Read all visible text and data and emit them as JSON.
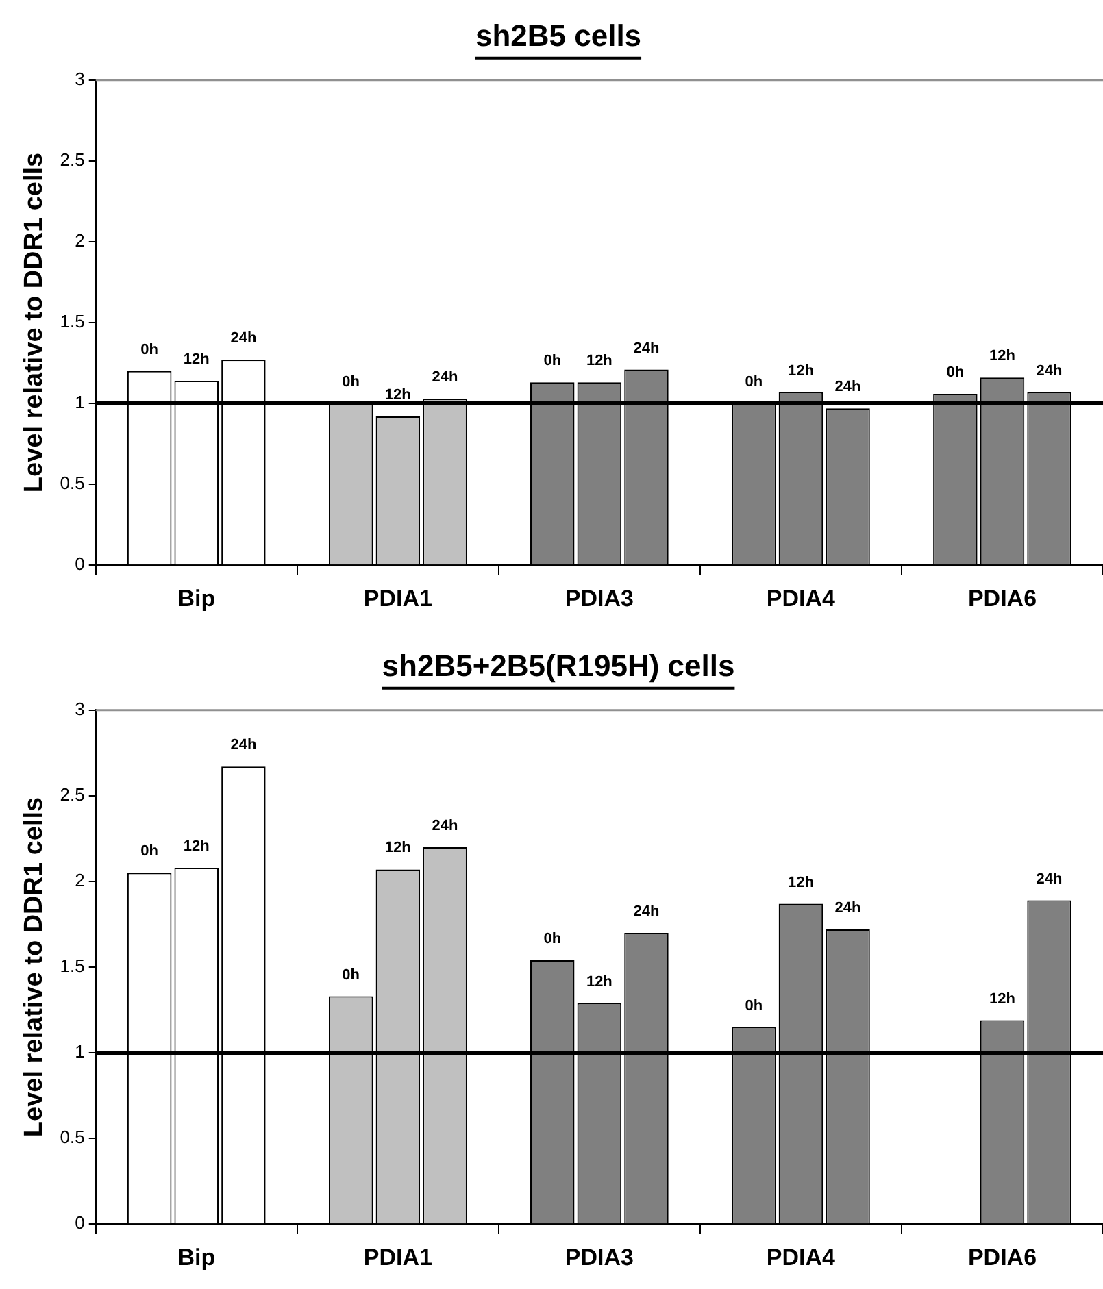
{
  "chart_data": [
    {
      "type": "bar",
      "title": "sh2B5 cells",
      "ylabel": "Level relative to DDR1 cells",
      "categories": [
        "Bip",
        "PDIA1",
        "PDIA3",
        "PDIA4",
        "PDIA6"
      ],
      "series": [
        {
          "name": "0h",
          "colors": [
            "#ffffff",
            "#c0c0c0",
            "#808080",
            "#808080",
            "#808080"
          ],
          "values": [
            1.2,
            1.0,
            1.13,
            1.0,
            1.06
          ]
        },
        {
          "name": "12h",
          "colors": [
            "#ffffff",
            "#c0c0c0",
            "#808080",
            "#808080",
            "#808080"
          ],
          "values": [
            1.14,
            0.92,
            1.13,
            1.07,
            1.16
          ]
        },
        {
          "name": "24h",
          "colors": [
            "#ffffff",
            "#c0c0c0",
            "#808080",
            "#808080",
            "#808080"
          ],
          "values": [
            1.27,
            1.03,
            1.21,
            0.97,
            1.07
          ]
        }
      ],
      "ylim": [
        0,
        3
      ],
      "yticks": [
        0,
        0.5,
        1,
        1.5,
        2,
        2.5,
        3
      ],
      "grid": false,
      "legend": false,
      "ref_lines": [
        {
          "axis": "y",
          "value": 1,
          "color": "#000000"
        }
      ]
    },
    {
      "type": "bar",
      "title": "sh2B5+2B5(R195H) cells",
      "ylabel": "Level relative to DDR1 cells",
      "categories": [
        "Bip",
        "PDIA1",
        "PDIA3",
        "PDIA4",
        "PDIA6"
      ],
      "series": [
        {
          "name": "0h",
          "colors": [
            "#ffffff",
            "#c0c0c0",
            "#808080",
            "#808080",
            "#808080"
          ],
          "values": [
            2.05,
            1.33,
            1.54,
            1.15,
            null
          ]
        },
        {
          "name": "12h",
          "colors": [
            "#ffffff",
            "#c0c0c0",
            "#808080",
            "#808080",
            "#808080"
          ],
          "values": [
            2.08,
            2.07,
            1.29,
            1.87,
            1.19
          ]
        },
        {
          "name": "24h",
          "colors": [
            "#ffffff",
            "#c0c0c0",
            "#808080",
            "#808080",
            "#808080"
          ],
          "values": [
            2.67,
            2.2,
            1.7,
            1.72,
            1.89
          ]
        }
      ],
      "ylim": [
        0,
        3
      ],
      "yticks": [
        0,
        0.5,
        1,
        1.5,
        2,
        2.5,
        3
      ],
      "grid": false,
      "legend": false,
      "ref_lines": [
        {
          "axis": "y",
          "value": 1,
          "color": "#000000"
        }
      ]
    }
  ]
}
